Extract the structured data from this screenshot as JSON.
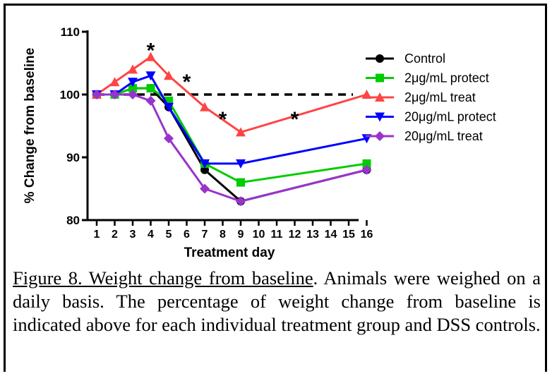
{
  "chart_data": {
    "type": "line",
    "xlabel": "Treatment day",
    "ylabel": "% Change from baseline",
    "ylim": [
      80,
      110
    ],
    "y_ticks": [
      80,
      90,
      100,
      110
    ],
    "categories": [
      "1",
      "2",
      "3",
      "4",
      "5",
      "6",
      "7",
      "8",
      "9",
      "10",
      "11",
      "12",
      "13",
      "14",
      "15",
      "16"
    ],
    "baseline": 100,
    "legend_position": "right",
    "series": [
      {
        "name": "Control",
        "color": "#000000",
        "marker": "circle",
        "x": [
          "1",
          "2",
          "3",
          "4",
          "5",
          "7",
          "9",
          "16"
        ],
        "values": [
          100,
          100,
          101,
          101,
          98,
          88,
          83,
          88
        ]
      },
      {
        "name": "2μg/mL protect",
        "color": "#00cc00",
        "marker": "square",
        "x": [
          "1",
          "2",
          "3",
          "4",
          "5",
          "7",
          "9",
          "16"
        ],
        "values": [
          100,
          100,
          101,
          101,
          99,
          89,
          86,
          89
        ]
      },
      {
        "name": "2μg/mL treat",
        "color": "#ff4444",
        "marker": "triangle-up",
        "x": [
          "1",
          "2",
          "3",
          "4",
          "5",
          "7",
          "9",
          "16"
        ],
        "values": [
          100,
          102,
          104,
          106,
          103,
          98,
          94,
          100
        ]
      },
      {
        "name": "20μg/mL protect",
        "color": "#0000ff",
        "marker": "triangle-down",
        "x": [
          "1",
          "2",
          "3",
          "4",
          "5",
          "7",
          "9",
          "16"
        ],
        "values": [
          100,
          100,
          102,
          103,
          98,
          89,
          89,
          93
        ]
      },
      {
        "name": "20μg/mL treat",
        "color": "#9933cc",
        "marker": "diamond",
        "x": [
          "1",
          "2",
          "3",
          "4",
          "5",
          "7",
          "9",
          "16"
        ],
        "values": [
          100,
          100,
          100,
          99,
          93,
          85,
          83,
          88
        ]
      }
    ],
    "significance": [
      {
        "label": "*",
        "x": "4",
        "y": 107.5
      },
      {
        "label": "*",
        "x": "6",
        "y": 102.5
      },
      {
        "label": "*",
        "x": "8",
        "y": 96.5
      },
      {
        "label": "*",
        "x": "12",
        "y": 96.5
      }
    ]
  },
  "caption": {
    "title": "Figure 8.  Weight change from baseline",
    "body": ".  Animals were weighed on a daily basis.  The percentage of weight change from baseline is indicated above for each individual treatment group and DSS controls."
  }
}
